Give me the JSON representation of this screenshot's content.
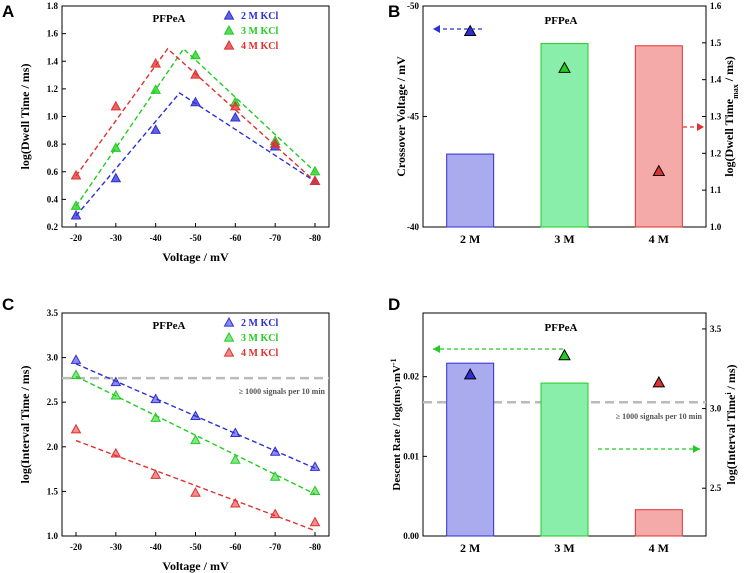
{
  "colors": {
    "kcl2": "#2e2ed6",
    "kcl3": "#22cc22",
    "kcl4": "#e03030",
    "bar2": "#aaaaee",
    "bar3": "#88eeaa",
    "bar4": "#f5aaaa",
    "threshold": "#bbbbbb"
  },
  "chart_data": [
    {
      "panel": "A",
      "type": "scatter",
      "title": "PFPeA",
      "xlabel": "Voltage / mV",
      "ylabel": "log(Dwell Time / ms)",
      "categories": [
        "-20",
        "-30",
        "-40",
        "-50",
        "-60",
        "-70",
        "-80"
      ],
      "ylim": [
        0.2,
        1.8
      ],
      "yticks": [
        "0.2",
        "0.4",
        "0.6",
        "0.8",
        "1.0",
        "1.2",
        "1.4",
        "1.6",
        "1.8"
      ],
      "legend_position": "top-right",
      "series": [
        {
          "name": "2 M KCl",
          "color_key": "kcl2",
          "values": [
            0.28,
            0.55,
            0.9,
            1.1,
            0.99,
            0.78,
            0.53
          ],
          "fit_peak": [
            -46,
            1.17
          ]
        },
        {
          "name": "3 M KCl",
          "color_key": "kcl3",
          "values": [
            0.35,
            0.77,
            1.19,
            1.44,
            1.1,
            0.82,
            0.6
          ],
          "fit_peak": [
            -47,
            1.49
          ]
        },
        {
          "name": "4 M KCl",
          "color_key": "kcl4",
          "values": [
            0.57,
            1.07,
            1.38,
            1.3,
            1.07,
            0.8,
            0.53
          ],
          "fit_peak": [
            -43,
            1.49
          ]
        }
      ]
    },
    {
      "panel": "B",
      "type": "bar",
      "title": "PFPeA",
      "categories": [
        "2 M",
        "3 M",
        "4 M"
      ],
      "ylabel": "Crossover Voltage / mV",
      "ylim": [
        -40,
        -50
      ],
      "yticks": [
        "-40",
        "-45",
        "-50"
      ],
      "values": [
        -43.3,
        -48.3,
        -48.2
      ],
      "y2label_main": "log(Dwell Time",
      "y2label_sub": "max",
      "y2label_end": " / ms)",
      "y2lim": [
        1.0,
        1.6
      ],
      "y2ticks": [
        "1.0",
        "1.1",
        "1.2",
        "1.3",
        "1.4",
        "1.5",
        "1.6"
      ],
      "markers": [
        1.53,
        1.43,
        1.15
      ]
    },
    {
      "panel": "C",
      "type": "scatter",
      "title": "PFPeA",
      "xlabel": "Voltage / mV",
      "ylabel": "log(Interval Time / ms)",
      "categories": [
        "-20",
        "-30",
        "-40",
        "-50",
        "-60",
        "-70",
        "-80"
      ],
      "ylim": [
        1.0,
        3.5
      ],
      "yticks": [
        "1.0",
        "1.5",
        "2.0",
        "2.5",
        "3.0",
        "3.5"
      ],
      "threshold": 2.77,
      "threshold_label": "≥ 1000 signals per 10 min",
      "legend_position": "top-right",
      "series": [
        {
          "name": "2 M KCl",
          "color_key": "kcl2",
          "values": [
            2.97,
            2.72,
            2.53,
            2.34,
            2.15,
            1.94,
            1.77
          ],
          "fit": [
            2.93,
            1.76
          ]
        },
        {
          "name": "3 M KCl",
          "color_key": "kcl3",
          "values": [
            2.8,
            2.57,
            2.32,
            2.07,
            1.85,
            1.66,
            1.5
          ],
          "fit": [
            2.79,
            1.47
          ]
        },
        {
          "name": "4 M KCl",
          "color_key": "kcl4",
          "values": [
            2.19,
            1.92,
            1.68,
            1.48,
            1.36,
            1.24,
            1.15
          ],
          "fit": [
            2.07,
            1.06
          ]
        }
      ]
    },
    {
      "panel": "D",
      "type": "bar",
      "title": "PFPeA",
      "categories": [
        "2 M",
        "3 M",
        "4 M"
      ],
      "ylabel_main": "Descent Rate / log(ms)·mV",
      "ylabel_sup": "-1",
      "ylim": [
        0,
        0.028
      ],
      "yticks": [
        "0.00",
        "0.01",
        "0.02"
      ],
      "values": [
        0.0217,
        0.0192,
        0.0033
      ],
      "y2label_main": "log(Interval Time",
      "y2label_sup": "i",
      "y2label_end": " / ms)",
      "y2lim": [
        2.2,
        3.6
      ],
      "y2ticks": [
        "2.5",
        "3.0",
        "3.5"
      ],
      "markers": [
        3.21,
        3.33,
        3.16
      ],
      "threshold": 3.04,
      "threshold_label": "≥ 1000 signals per 10 min"
    }
  ],
  "panels": {
    "a": {
      "letter": "A"
    },
    "b": {
      "letter": "B"
    },
    "c": {
      "letter": "C"
    },
    "d": {
      "letter": "D"
    }
  }
}
